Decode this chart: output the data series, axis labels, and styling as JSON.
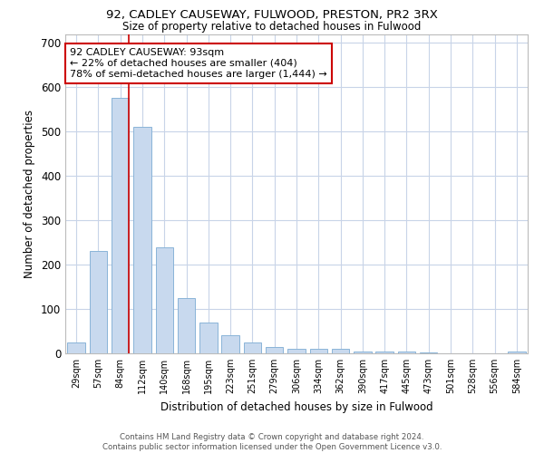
{
  "title_line1": "92, CADLEY CAUSEWAY, FULWOOD, PRESTON, PR2 3RX",
  "title_line2": "Size of property relative to detached houses in Fulwood",
  "xlabel": "Distribution of detached houses by size in Fulwood",
  "ylabel": "Number of detached properties",
  "categories": [
    "29sqm",
    "57sqm",
    "84sqm",
    "112sqm",
    "140sqm",
    "168sqm",
    "195sqm",
    "223sqm",
    "251sqm",
    "279sqm",
    "306sqm",
    "334sqm",
    "362sqm",
    "390sqm",
    "417sqm",
    "445sqm",
    "473sqm",
    "501sqm",
    "528sqm",
    "556sqm",
    "584sqm"
  ],
  "values": [
    25,
    230,
    575,
    510,
    240,
    125,
    70,
    40,
    25,
    15,
    10,
    10,
    10,
    5,
    5,
    5,
    3,
    0,
    0,
    0,
    5
  ],
  "bar_color": "#c8d9ee",
  "bar_edge_color": "#8ab4d8",
  "annotation_title": "92 CADLEY CAUSEWAY: 93sqm",
  "annotation_line2": "← 22% of detached houses are smaller (404)",
  "annotation_line3": "78% of semi-detached houses are larger (1,444) →",
  "annotation_box_color": "#ffffff",
  "annotation_box_edge": "#cc0000",
  "vline_color": "#cc0000",
  "ylim": [
    0,
    720
  ],
  "yticks": [
    0,
    100,
    200,
    300,
    400,
    500,
    600,
    700
  ],
  "footer_line1": "Contains HM Land Registry data © Crown copyright and database right 2024.",
  "footer_line2": "Contains public sector information licensed under the Open Government Licence v3.0.",
  "background_color": "#ffffff",
  "grid_color": "#c8d4e8"
}
